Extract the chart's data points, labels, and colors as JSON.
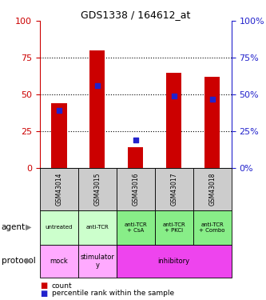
{
  "title": "GDS1338 / 164612_at",
  "categories": [
    "GSM43014",
    "GSM43015",
    "GSM43016",
    "GSM43017",
    "GSM43018"
  ],
  "count_values": [
    44,
    80,
    14,
    65,
    62
  ],
  "percentile_values": [
    39,
    56,
    19,
    49,
    47
  ],
  "ylim": [
    0,
    100
  ],
  "yticks": [
    0,
    25,
    50,
    75,
    100
  ],
  "bar_color": "#cc0000",
  "dot_color": "#2222cc",
  "agent_labels": [
    "untreated",
    "anti-TCR",
    "anti-TCR\n+ CsA",
    "anti-TCR\n+ PKCi",
    "anti-TCR\n+ Combo"
  ],
  "agent_bg_light": "#ccffcc",
  "agent_bg_dark": "#88ee88",
  "gsm_bg": "#cccccc",
  "protocol_mock_bg": "#ffaaff",
  "protocol_stim_bg": "#ffaaff",
  "protocol_inhib_bg": "#ee44ee",
  "left_axis_color": "#cc0000",
  "right_axis_color": "#2222cc",
  "legend_count_color": "#cc0000",
  "legend_pct_color": "#2222cc"
}
